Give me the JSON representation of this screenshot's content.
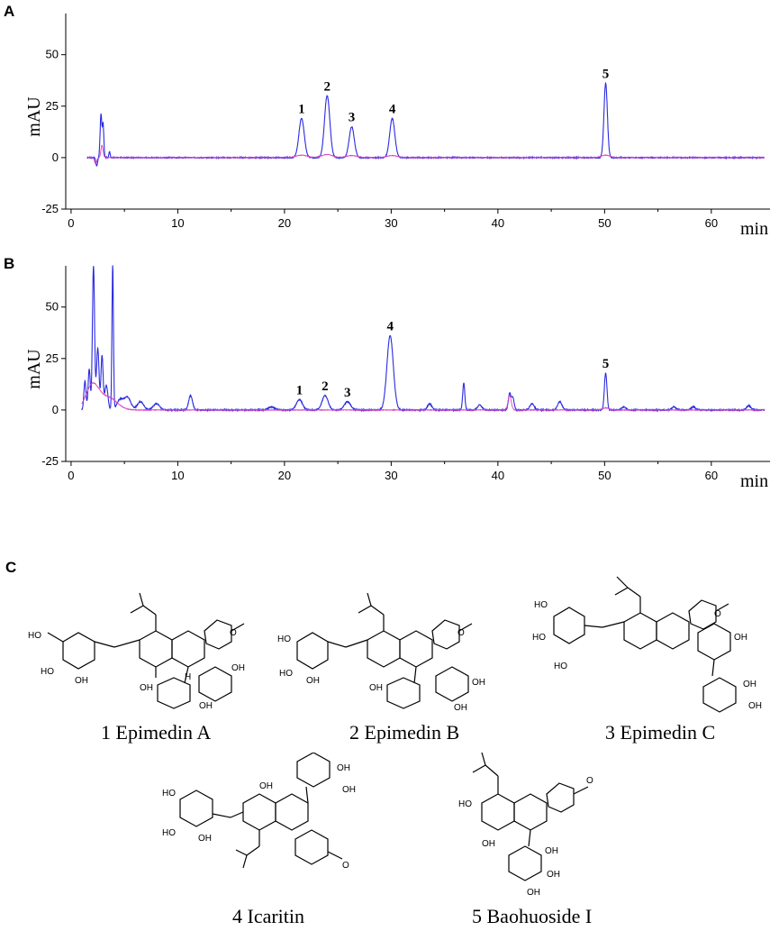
{
  "panel_c": {
    "letter": "C",
    "captions": [
      "1 Epimedin A",
      "2 Epimedin B",
      "3 Epimedin C",
      "4 Icaritin",
      "5 Baohuoside I"
    ],
    "atom_labels": {
      "ho": "HO",
      "oh": "OH",
      "o": "O",
      "h": "H"
    }
  },
  "chart_data": [
    {
      "type": "line",
      "panel": "A",
      "ylabel": "mAU",
      "xlabel": "min",
      "xlim": [
        -0.5,
        65.5
      ],
      "ylim": [
        -25,
        70
      ],
      "xticks": [
        0,
        10,
        20,
        30,
        40,
        50,
        60
      ],
      "yticks": [
        -25,
        0,
        25,
        50
      ],
      "series": [
        {
          "color": "#2a2ae0",
          "peaks": [
            [
              2.4,
              -4,
              0.08
            ],
            [
              2.8,
              21,
              0.08
            ],
            [
              3.0,
              16,
              0.07
            ],
            [
              3.6,
              3,
              0.06
            ],
            [
              21.6,
              19,
              0.25
            ],
            [
              24.0,
              30,
              0.25
            ],
            [
              26.3,
              15,
              0.24
            ],
            [
              30.1,
              19,
              0.24
            ],
            [
              50.1,
              36,
              0.16
            ]
          ],
          "noise": 0.4
        },
        {
          "color": "#e040c0",
          "peaks": [
            [
              2.3,
              -3,
              0.1
            ],
            [
              2.9,
              6,
              0.1
            ],
            [
              21.6,
              1.2,
              0.5
            ],
            [
              24.0,
              1.5,
              0.5
            ],
            [
              26.3,
              1.0,
              0.5
            ],
            [
              30.1,
              1.0,
              0.5
            ],
            [
              50.1,
              1.2,
              0.4
            ]
          ],
          "noise": 0.2
        }
      ],
      "peak_labels": [
        {
          "text": "1",
          "x": 21.6,
          "y": 19
        },
        {
          "text": "2",
          "x": 24.0,
          "y": 30
        },
        {
          "text": "3",
          "x": 26.3,
          "y": 15
        },
        {
          "text": "4",
          "x": 30.1,
          "y": 19
        },
        {
          "text": "5",
          "x": 50.1,
          "y": 36
        }
      ]
    },
    {
      "type": "line",
      "panel": "B",
      "ylabel": "mAU",
      "xlabel": "min",
      "xlim": [
        -0.5,
        65.5
      ],
      "ylim": [
        -25,
        70
      ],
      "xticks": [
        0,
        10,
        20,
        30,
        40,
        50,
        60
      ],
      "yticks": [
        -25,
        0,
        25,
        50
      ],
      "series": [
        {
          "color": "#2a2ae0",
          "peaks": [
            [
              1.3,
              14,
              0.1
            ],
            [
              1.7,
              20,
              0.1
            ],
            [
              2.1,
              70,
              0.1
            ],
            [
              2.5,
              30,
              0.12
            ],
            [
              2.9,
              26,
              0.1
            ],
            [
              3.3,
              12,
              0.15
            ],
            [
              3.9,
              70,
              0.07
            ],
            [
              4.6,
              5,
              0.3
            ],
            [
              5.3,
              6,
              0.3
            ],
            [
              6.5,
              4,
              0.3
            ],
            [
              8.0,
              3,
              0.3
            ],
            [
              11.2,
              7,
              0.18
            ],
            [
              18.8,
              1.5,
              0.3
            ],
            [
              21.4,
              5,
              0.28
            ],
            [
              23.8,
              7,
              0.28
            ],
            [
              25.9,
              4,
              0.3
            ],
            [
              29.9,
              36,
              0.3
            ],
            [
              33.6,
              3,
              0.2
            ],
            [
              36.8,
              13,
              0.1
            ],
            [
              38.3,
              2.5,
              0.2
            ],
            [
              41.1,
              8,
              0.12
            ],
            [
              41.4,
              6,
              0.12
            ],
            [
              43.2,
              3,
              0.2
            ],
            [
              45.8,
              4,
              0.2
            ],
            [
              50.1,
              18,
              0.12
            ],
            [
              51.8,
              1.5,
              0.2
            ],
            [
              56.5,
              1.5,
              0.2
            ],
            [
              58.3,
              1.5,
              0.2
            ],
            [
              63.5,
              2,
              0.2
            ]
          ],
          "noise": 0.5
        },
        {
          "color": "#e040c0",
          "peaks": [
            [
              2.0,
              12,
              0.6
            ],
            [
              3.5,
              6,
              0.8
            ],
            [
              41.1,
              7,
              0.15
            ],
            [
              50.1,
              1.0,
              0.3
            ]
          ],
          "noise": 0.3
        }
      ],
      "peak_labels": [
        {
          "text": "1",
          "x": 21.4,
          "y": 5
        },
        {
          "text": "2",
          "x": 23.8,
          "y": 7
        },
        {
          "text": "3",
          "x": 25.9,
          "y": 4
        },
        {
          "text": "4",
          "x": 29.9,
          "y": 36
        },
        {
          "text": "5",
          "x": 50.1,
          "y": 18
        }
      ]
    }
  ]
}
